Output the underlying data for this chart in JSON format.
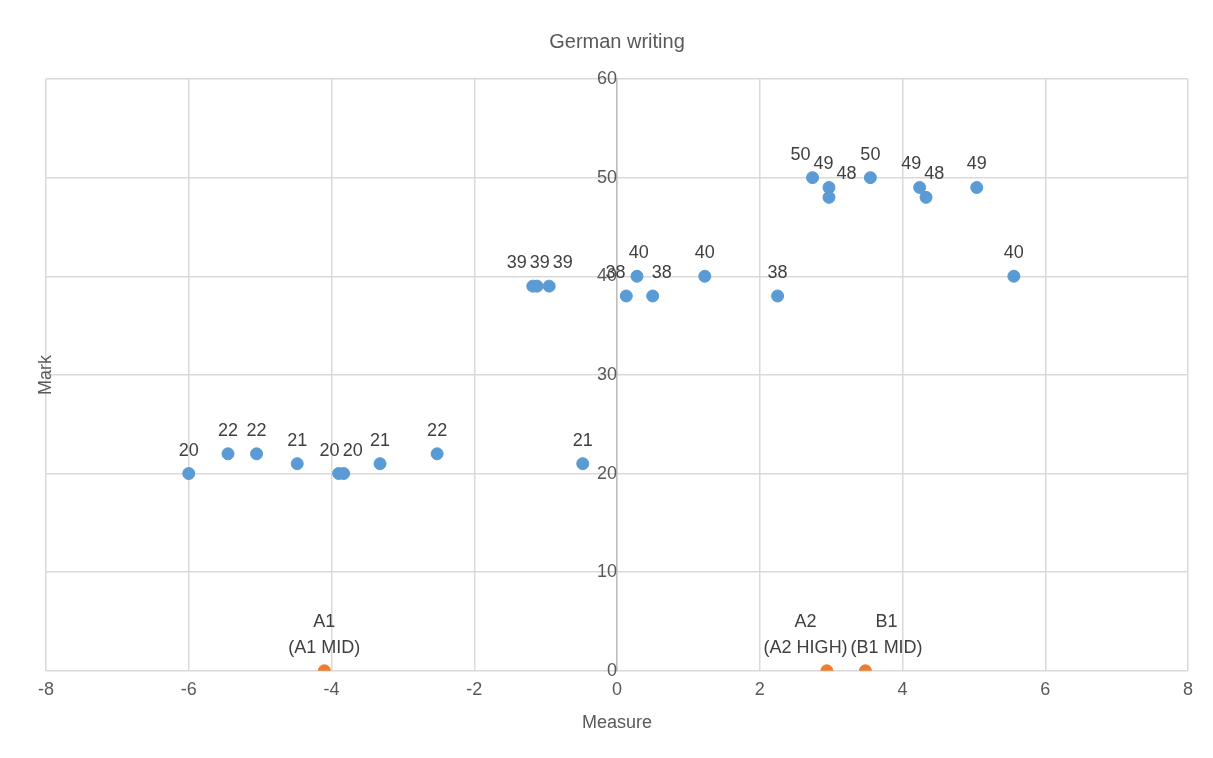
{
  "chart_data": {
    "type": "scatter",
    "title": "German writing",
    "xlabel": "Measure",
    "ylabel": "Mark",
    "xlim": [
      -8,
      8
    ],
    "xticks": [
      -8,
      -6,
      -4,
      -2,
      0,
      2,
      4,
      6,
      8
    ],
    "ylim": [
      0,
      60
    ],
    "yticks": [
      0,
      10,
      20,
      30,
      40,
      50,
      60
    ],
    "grid": true,
    "legend": false,
    "marker": "circle",
    "data_labels": true,
    "series": [
      {
        "color": "#5b9bd5",
        "x": [
          -6.0,
          -5.45,
          -5.05,
          -4.48,
          -3.9,
          -3.83,
          -3.32,
          -2.52,
          -0.48,
          -1.18,
          -1.12,
          -0.95,
          0.13,
          0.28,
          0.5,
          1.23,
          2.25,
          2.74,
          2.97,
          2.97,
          3.55,
          4.24,
          4.33,
          5.04,
          5.56
        ],
        "values": [
          20,
          22,
          22,
          21,
          20,
          20,
          21,
          22,
          21,
          39,
          39,
          39,
          38,
          40,
          38,
          40,
          38,
          50,
          49,
          48,
          50,
          49,
          48,
          49,
          40
        ]
      },
      {
        "color": "#ed7d31",
        "x": [
          -4.1,
          2.94,
          3.48
        ],
        "values": [
          0,
          0,
          0
        ],
        "value_labels": [
          "A1\n(A1 MID)",
          "A2\n(A2 HIGH)",
          "B1\n(B1 MID)"
        ]
      }
    ]
  }
}
